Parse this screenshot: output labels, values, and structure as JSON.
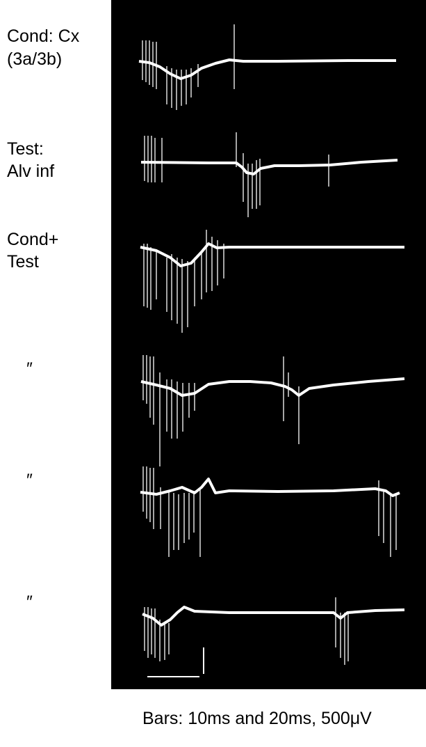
{
  "labels": [
    {
      "lines": [
        "Cond: Cx",
        "(3a/3b)"
      ]
    },
    {
      "lines": [
        "Test:",
        "Alv inf"
      ]
    },
    {
      "lines": [
        "Cond+",
        "Test"
      ]
    },
    {
      "lines": [
        "″"
      ]
    },
    {
      "lines": [
        "″"
      ]
    },
    {
      "lines": [
        "″"
      ]
    }
  ],
  "caption": "Bars: 10ms and 20ms, 500μV"
}
